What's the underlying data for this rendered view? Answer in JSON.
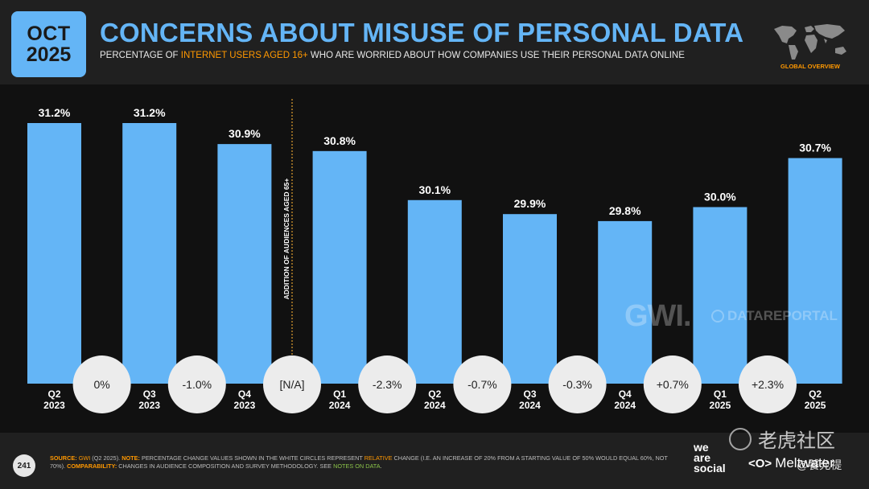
{
  "header": {
    "badge_month": "OCT",
    "badge_year": "2025",
    "title": "CONCERNS ABOUT MISUSE OF PERSONAL DATA",
    "subtitle_pre": "PERCENTAGE OF ",
    "subtitle_highlight": "INTERNET USERS AGED 16+",
    "subtitle_post": " WHO ARE WORRIED ABOUT HOW COMPANIES USE THEIR PERSONAL DATA ONLINE",
    "map_label": "GLOBAL OVERVIEW"
  },
  "colors": {
    "accent": "#64b5f6",
    "highlight": "#ff9800",
    "background": "#202020",
    "chart_bg": "#111111",
    "circle": "#ececec"
  },
  "chart_data": {
    "type": "bar",
    "title": "CONCERNS ABOUT MISUSE OF PERSONAL DATA",
    "categories": [
      [
        "Q2",
        "2023"
      ],
      [
        "Q3",
        "2023"
      ],
      [
        "Q4",
        "2023"
      ],
      [
        "Q1",
        "2024"
      ],
      [
        "Q2",
        "2024"
      ],
      [
        "Q3",
        "2024"
      ],
      [
        "Q4",
        "2024"
      ],
      [
        "Q1",
        "2025"
      ],
      [
        "Q2",
        "2025"
      ]
    ],
    "values": [
      31.2,
      31.2,
      30.9,
      30.8,
      30.1,
      29.9,
      29.8,
      30.0,
      30.7
    ],
    "value_labels": [
      "31.2%",
      "31.2%",
      "30.9%",
      "30.8%",
      "30.1%",
      "29.9%",
      "29.8%",
      "30.0%",
      "30.7%"
    ],
    "changes": [
      "0%",
      "-1.0%",
      "[N/A]",
      "-2.3%",
      "-0.7%",
      "-0.3%",
      "+0.7%",
      "+2.3%"
    ],
    "annotation": "ADDITION OF AUDIENCES AGED 65+",
    "annotation_after_index": 2,
    "ylim": [
      0,
      31.2
    ]
  },
  "watermarks": {
    "gwi": "GWI.",
    "datareportal": "DATAREPORTAL",
    "chinese": "老虎社区",
    "handle": "@饕允禔"
  },
  "footer": {
    "page_number": "241",
    "source_label": "SOURCE:",
    "source_name": "GWI",
    "source_detail": " (Q2 2025). ",
    "note_label": "NOTE:",
    "note_text_1": " PERCENTAGE CHANGE VALUES SHOWN IN THE WHITE CIRCLES REPRESENT ",
    "note_relative": "RELATIVE",
    "note_text_2": " CHANGE (I.E. AN INCREASE OF 20% FROM A STARTING VALUE OF 50% WOULD EQUAL 60%, NOT 70%). ",
    "comparability_label": "COMPARABILITY:",
    "comparability_text": " CHANGES IN AUDIENCE COMPOSITION AND SURVEY METHODOLOGY. SEE ",
    "notes_link": "NOTES ON DATA",
    "end": "."
  },
  "brands": {
    "we": "we",
    "are": "are",
    "social": "social",
    "meltwater": "Meltwater",
    "meltwater_icon": "<O>"
  }
}
